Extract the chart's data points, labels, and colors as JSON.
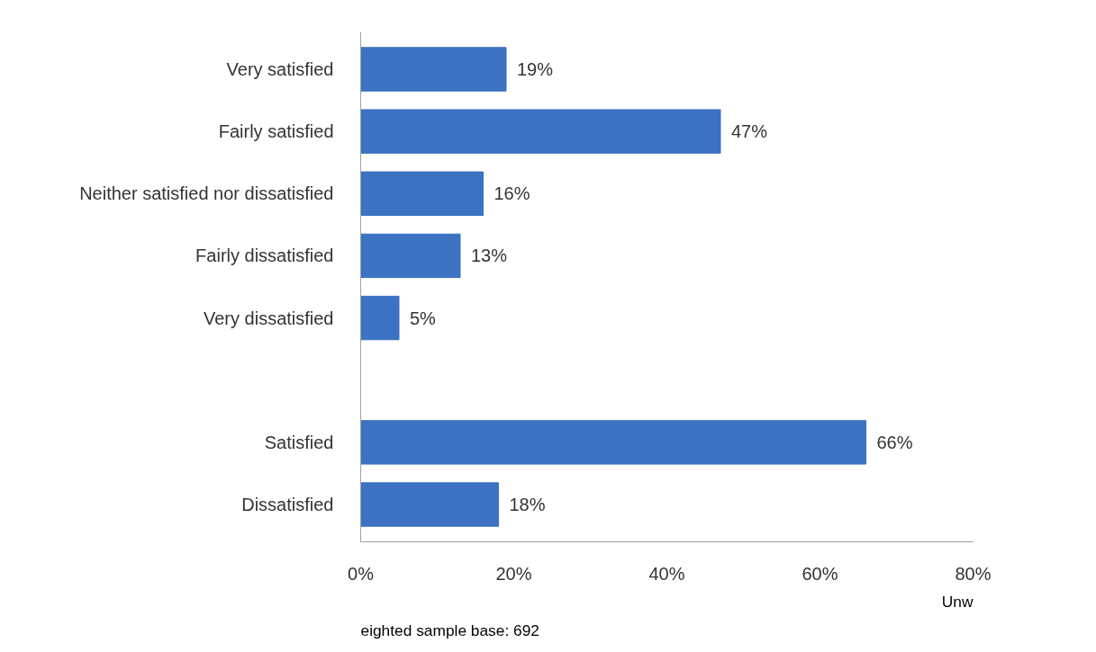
{
  "chart_data": {
    "type": "bar",
    "orientation": "horizontal",
    "categories": [
      "Very satisfied",
      "Fairly satisfied",
      "Neither satisfied nor dissatisfied",
      "Fairly dissatisfied",
      "Very dissatisfied",
      null,
      "Satisfied",
      "Dissatisfied"
    ],
    "values": [
      19,
      47,
      16,
      13,
      5,
      null,
      66,
      18
    ],
    "value_labels": [
      "19%",
      "47%",
      "16%",
      "13%",
      "5%",
      null,
      "66%",
      "18%"
    ],
    "color": "#3b72c2",
    "xlim": [
      0,
      80
    ],
    "xticks": [
      {
        "value": 0,
        "label": "0%"
      },
      {
        "value": 20,
        "label": "20%"
      },
      {
        "value": 40,
        "label": "40%"
      },
      {
        "value": 60,
        "label": "60%"
      },
      {
        "value": 80,
        "label": "80%"
      }
    ],
    "grid": false,
    "annotations": [
      "Unw",
      "eighted sample base: 692"
    ]
  }
}
